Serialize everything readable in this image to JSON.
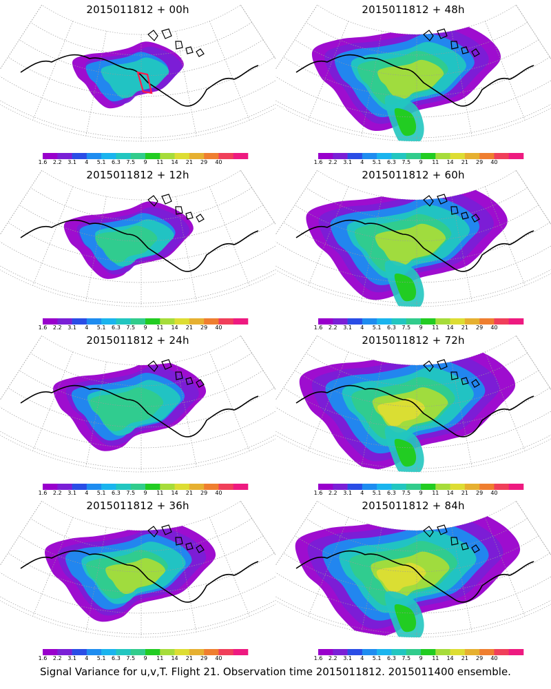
{
  "caption": "Signal Variance for u,v,T. Flight 21. Observation time 2015011812. 2015011400 ensemble.",
  "panels": [
    {
      "title": "2015011812 + 00h",
      "lead_hours": 0
    },
    {
      "title": "2015011812 + 48h",
      "lead_hours": 48
    },
    {
      "title": "2015011812 + 12h",
      "lead_hours": 12
    },
    {
      "title": "2015011812 + 60h",
      "lead_hours": 60
    },
    {
      "title": "2015011812 + 24h",
      "lead_hours": 24
    },
    {
      "title": "2015011812 + 72h",
      "lead_hours": 72
    },
    {
      "title": "2015011812 + 36h",
      "lead_hours": 36
    },
    {
      "title": "2015011812 + 84h",
      "lead_hours": 84
    }
  ],
  "colorbar": {
    "labels": [
      "1.6",
      "2.2",
      "3.1",
      "4",
      "5.1",
      "6.3",
      "7.5",
      "9",
      "11",
      "14",
      "21",
      "29",
      "40"
    ],
    "colors": [
      "#9900cc",
      "#7a1fd6",
      "#2a4de6",
      "#1e8cf0",
      "#1ab4ee",
      "#22c6c0",
      "#31cc8c",
      "#22cc22",
      "#a6dc3a",
      "#dddd33",
      "#e6b030",
      "#ef7e2f",
      "#f03f5a",
      "#ee1a80"
    ]
  }
}
